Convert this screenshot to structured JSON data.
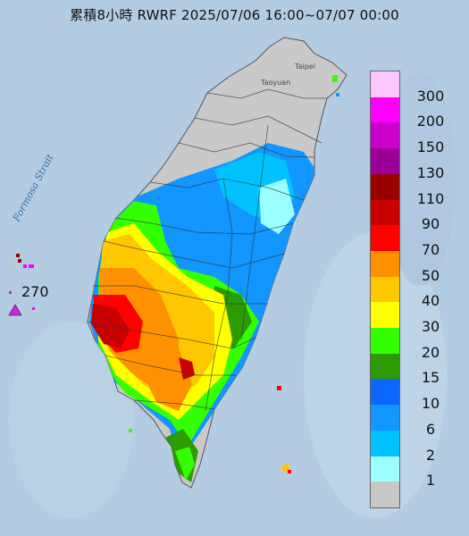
{
  "title": "累積8小時 RWRF 2025/07/06 16:00~07/07 00:00",
  "strait_label": "Formosa Strait",
  "city_labels": {
    "taipei": "Taipei",
    "taoyuan": "Taoyuan"
  },
  "offshore_marker": {
    "value": "270",
    "color": "#c52ad6"
  },
  "legend": {
    "unit_steps": [
      "300",
      "200",
      "150",
      "130",
      "110",
      "90",
      "70",
      "50",
      "40",
      "30",
      "20",
      "15",
      "10",
      "6",
      "2",
      "1"
    ],
    "colors": [
      "#fcc7fc",
      "#fc00fc",
      "#cb00cc",
      "#9a0099",
      "#990000",
      "#c80000",
      "#ff0000",
      "#ff9100",
      "#ffc700",
      "#ffff00",
      "#34ff00",
      "#2b9b00",
      "#0a68ff",
      "#1296ff",
      "#00c2ff",
      "#9bffff",
      "#c8c8c8"
    ]
  }
}
